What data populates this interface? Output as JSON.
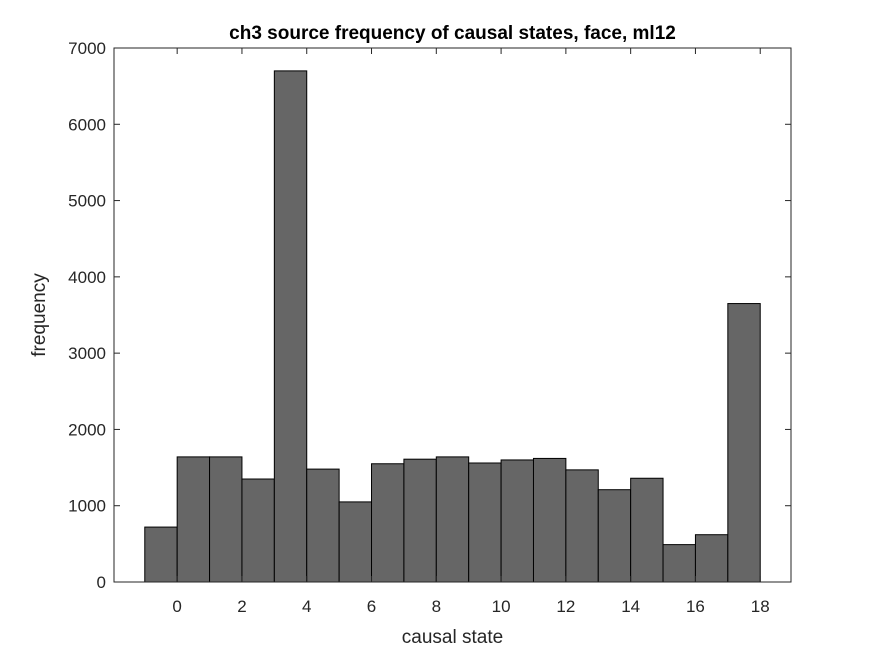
{
  "chart_data": {
    "type": "bar",
    "title": "ch3 source frequency of causal states, face, ml12",
    "xlabel": "causal state",
    "ylabel": "frequency",
    "categories": [
      -0.5,
      0.5,
      1.5,
      2.5,
      3.5,
      4.5,
      5.5,
      6.5,
      7.5,
      8.5,
      9.5,
      10.5,
      11.5,
      12.5,
      13.5,
      14.5,
      15.5,
      16.5,
      17.5
    ],
    "values": [
      720,
      1640,
      1640,
      1350,
      6700,
      1480,
      1050,
      1550,
      1610,
      1640,
      1560,
      1600,
      1620,
      1470,
      1210,
      1360,
      490,
      620,
      3650
    ],
    "bin_width": 1,
    "xlim": [
      -1.95,
      18.95
    ],
    "ylim": [
      0,
      7000
    ],
    "xticks": [
      0,
      2,
      4,
      6,
      8,
      10,
      12,
      14,
      16,
      18
    ],
    "yticks": [
      0,
      1000,
      2000,
      3000,
      4000,
      5000,
      6000,
      7000
    ],
    "grid": false,
    "bar_color": "#666666",
    "edge_color": "#000000"
  }
}
